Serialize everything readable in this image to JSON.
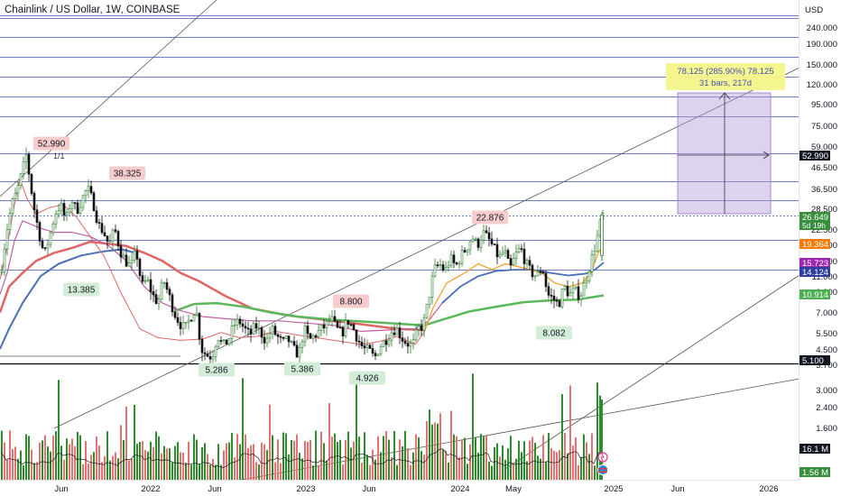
{
  "header": {
    "symbol_label": "Chainlink / US Dollar, 1W, COINBASE"
  },
  "currency": "USD",
  "colors": {
    "up": "#2e7d32",
    "down": "#111111",
    "hline": "#3f51b5",
    "ema_red": "#e06666",
    "ema_pink": "#c060a0",
    "ema_orange": "#f5a623",
    "ema_blue": "#4a6fb5",
    "ema_green": "#5cb85c",
    "vol_green": "#2e8b2e",
    "vol_red": "#e57373",
    "measure_fill": "#b39ddb"
  },
  "chart_data": {
    "type": "candlestick",
    "price_scale": "log",
    "price_axis_ticks": [
      "240.000",
      "190.000",
      "150.000",
      "120.000",
      "95.000",
      "75.000",
      "59.000",
      "46.500",
      "36.500",
      "28.500",
      "22.500",
      "17.500",
      "13.500",
      "11.000",
      "9.000",
      "7.000",
      "5.500",
      "4.500",
      "3.700",
      "3.000",
      "2.400",
      "1.600"
    ],
    "time_axis_labels": [
      "Jun",
      "2022",
      "Jun",
      "2023",
      "Jun",
      "2024",
      "May",
      "2025",
      "Jun",
      "2026"
    ],
    "price_tags": [
      {
        "label": "52.990",
        "style": "dark"
      },
      {
        "label": "26.649",
        "sub": "5d 19h",
        "style": "green"
      },
      {
        "label": "19.364",
        "style": "orange"
      },
      {
        "label": "15.723",
        "style": "purple"
      },
      {
        "label": "14.124",
        "style": "blue"
      },
      {
        "label": "10.914",
        "style": "lightgreen"
      },
      {
        "label": "5.100",
        "style": "dark"
      },
      {
        "label": "16.1 M",
        "style": "dark"
      },
      {
        "label": "1.56 M",
        "style": "green"
      }
    ],
    "annotations": [
      {
        "label": "52.990",
        "type": "high"
      },
      {
        "label": "38.325",
        "type": "high"
      },
      {
        "label": "13.385",
        "type": "low"
      },
      {
        "label": "5.286",
        "type": "low"
      },
      {
        "label": "5.386",
        "type": "low"
      },
      {
        "label": "8.800",
        "type": "high"
      },
      {
        "label": "4.926",
        "type": "low"
      },
      {
        "label": "22.876",
        "type": "high"
      },
      {
        "label": "8.082",
        "type": "low"
      }
    ],
    "fib_label": "1/1",
    "measure": {
      "line1": "78.125 (285.90%) 78.125",
      "line2": "31 bars, 217d"
    },
    "horizontal_levels": [
      240,
      195,
      155,
      125,
      100,
      80,
      52.99,
      39,
      31.5,
      26.649,
      20.2,
      14.5,
      5.1
    ],
    "emas": {
      "fast": [
        [
          0,
          13
        ],
        [
          8,
          19
        ],
        [
          16,
          30
        ],
        [
          22,
          40
        ],
        [
          30,
          32
        ],
        [
          40,
          27
        ],
        [
          55,
          29
        ],
        [
          70,
          30
        ],
        [
          85,
          26
        ],
        [
          100,
          21
        ],
        [
          115,
          17
        ],
        [
          135,
          11
        ],
        [
          155,
          7.5
        ],
        [
          175,
          6.8
        ],
        [
          200,
          6.6
        ],
        [
          225,
          6.7
        ],
        [
          245,
          7.2
        ],
        [
          265,
          6.8
        ],
        [
          285,
          6.9
        ],
        [
          305,
          7.3
        ],
        [
          330,
          7.0
        ],
        [
          360,
          6.7
        ],
        [
          380,
          6.5
        ],
        [
          400,
          6.3
        ],
        [
          420,
          6.5
        ],
        [
          440,
          6.9
        ],
        [
          460,
          6.3
        ],
        [
          470,
          7.2
        ],
        [
          480,
          9.5
        ],
        [
          495,
          12.5
        ],
        [
          515,
          14.0
        ],
        [
          530,
          15.5
        ],
        [
          545,
          14.5
        ],
        [
          560,
          15.5
        ],
        [
          580,
          14.8
        ],
        [
          600,
          14.0
        ],
        [
          615,
          12.5
        ],
        [
          630,
          12.0
        ],
        [
          645,
          12.5
        ],
        [
          655,
          14.0
        ],
        [
          663,
          17.5
        ],
        [
          669,
          19.4
        ]
      ],
      "mid": [
        [
          0,
          11
        ],
        [
          8,
          14
        ],
        [
          16,
          20
        ],
        [
          25,
          25
        ],
        [
          35,
          24
        ],
        [
          45,
          23
        ],
        [
          60,
          22
        ],
        [
          80,
          22
        ],
        [
          100,
          21
        ],
        [
          120,
          19
        ],
        [
          140,
          16
        ],
        [
          160,
          12
        ],
        [
          180,
          10
        ],
        [
          200,
          9.2
        ],
        [
          225,
          8.6
        ],
        [
          250,
          8.4
        ],
        [
          280,
          8.2
        ],
        [
          310,
          8.2
        ],
        [
          340,
          8.0
        ],
        [
          370,
          7.8
        ],
        [
          400,
          7.3
        ],
        [
          430,
          7.4
        ],
        [
          460,
          7.5
        ],
        [
          475,
          8.2
        ],
        [
          490,
          10
        ],
        [
          510,
          12
        ],
        [
          530,
          13.5
        ],
        [
          550,
          14.3
        ],
        [
          570,
          14.5
        ],
        [
          590,
          14.5
        ],
        [
          610,
          14.0
        ],
        [
          630,
          13.6
        ],
        [
          650,
          13.9
        ],
        [
          660,
          14.6
        ],
        [
          669,
          15.7
        ]
      ],
      "slow": [
        [
          0,
          9
        ],
        [
          10,
          12
        ],
        [
          25,
          14
        ],
        [
          40,
          16
        ],
        [
          60,
          17.5
        ],
        [
          80,
          18.5
        ],
        [
          100,
          19.8
        ],
        [
          120,
          19.4
        ],
        [
          140,
          18.9
        ],
        [
          160,
          17.5
        ],
        [
          180,
          16
        ],
        [
          200,
          14
        ],
        [
          220,
          12.8
        ],
        [
          250,
          10.8
        ],
        [
          280,
          9.4
        ],
        [
          320,
          8.7
        ],
        [
          360,
          8.3
        ],
        [
          400,
          7.9
        ],
        [
          440,
          7.5
        ],
        [
          470,
          7.4
        ]
      ],
      "base": [
        [
          0,
          6.0
        ],
        [
          10,
          7.5
        ],
        [
          25,
          10
        ],
        [
          45,
          13.5
        ],
        [
          65,
          15.5
        ],
        [
          90,
          17
        ],
        [
          115,
          17.8
        ],
        [
          135,
          18.2
        ],
        [
          150,
          17.5
        ]
      ],
      "green": [
        [
          195,
          9.2
        ],
        [
          215,
          9.9
        ],
        [
          240,
          10
        ],
        [
          270,
          9.6
        ],
        [
          300,
          9.0
        ],
        [
          330,
          8.6
        ],
        [
          370,
          8.3
        ],
        [
          410,
          8.1
        ],
        [
          450,
          7.9
        ],
        [
          470,
          7.8
        ],
        [
          490,
          8.3
        ],
        [
          520,
          9.1
        ],
        [
          550,
          9.6
        ],
        [
          580,
          10.1
        ],
        [
          610,
          10.3
        ],
        [
          640,
          10.4
        ],
        [
          669,
          10.9
        ]
      ]
    }
  }
}
